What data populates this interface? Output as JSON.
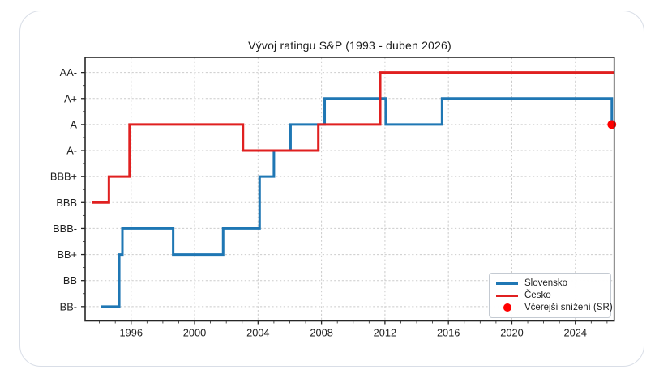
{
  "chart_data": {
    "type": "line",
    "title": "Vývoj ratingu S&P (1993 - duben 2026)",
    "x_ticks": [
      1996,
      2000,
      2004,
      2008,
      2012,
      2016,
      2020,
      2024
    ],
    "y_tick_labels": [
      "BB-",
      "BB",
      "BB+",
      "BBB-",
      "BBB",
      "BBB+",
      "A-",
      "A",
      "A+",
      "AA-"
    ],
    "xlim": [
      1993.1,
      2026.45
    ],
    "ylim": [
      0.45,
      10.58
    ],
    "grid": true,
    "step_mode": "post",
    "legend": {
      "position": "lower-right",
      "items": [
        {
          "label": "Slovensko",
          "swatch": "line",
          "color": "#1f77b4"
        },
        {
          "label": "Česko",
          "swatch": "line",
          "color": "#e02020"
        },
        {
          "label": "Včerejší snížení (SR)",
          "swatch": "dot",
          "color": "#ff0000"
        }
      ]
    },
    "series": [
      {
        "name": "Slovensko",
        "color": "#1f77b4",
        "points": [
          [
            1994.1,
            "BB-"
          ],
          [
            1995.25,
            "BB+"
          ],
          [
            1995.45,
            "BBB-"
          ],
          [
            1998.65,
            "BB+"
          ],
          [
            2001.8,
            "BBB-"
          ],
          [
            2004.1,
            "BBB+"
          ],
          [
            2005.0,
            "A-"
          ],
          [
            2006.05,
            "A"
          ],
          [
            2008.2,
            "A+"
          ],
          [
            2012.05,
            "A"
          ],
          [
            2015.6,
            "A+"
          ],
          [
            2026.3,
            "A"
          ]
        ]
      },
      {
        "name": "Česko",
        "color": "#e02020",
        "points": [
          [
            1993.55,
            "BBB"
          ],
          [
            1994.6,
            "BBB+"
          ],
          [
            1995.9,
            "A"
          ],
          [
            2003.05,
            "A-"
          ],
          [
            2007.8,
            "A"
          ],
          [
            2011.7,
            "AA-"
          ],
          [
            2026.44,
            "AA-"
          ]
        ]
      }
    ],
    "marker": {
      "label": "Včerejší snížení (SR)",
      "color": "#ff0000",
      "x": 2026.3,
      "y": "A"
    }
  }
}
